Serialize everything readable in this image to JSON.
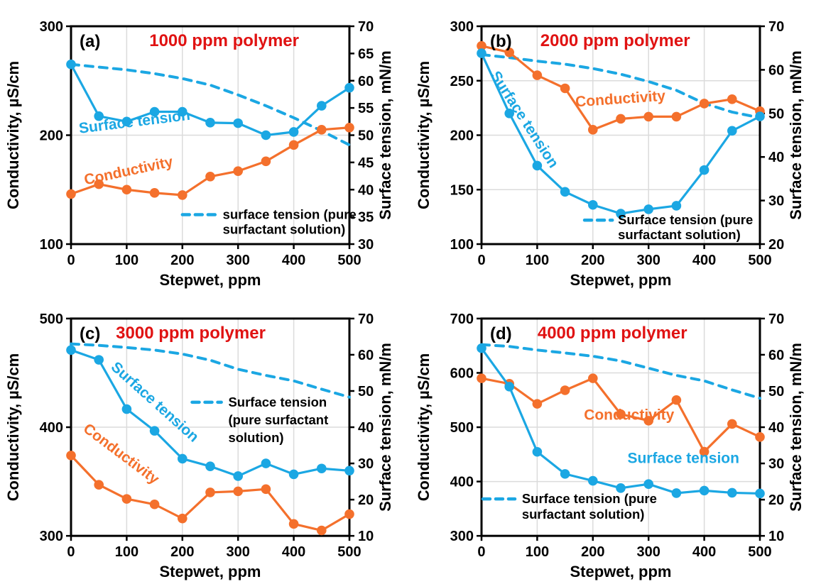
{
  "page": {
    "background": "#ffffff"
  },
  "colors": {
    "surface_tension": "#1BA7E3",
    "conductivity": "#F4702C",
    "grid": "#DBDBDB",
    "axis": "#000000",
    "text": "#000000",
    "title_red": "#E01212"
  },
  "chart_data": [
    {
      "id": "a",
      "type": "line",
      "panel_label": "(a)",
      "title": "1000 ppm polymer",
      "title_x_pct": 0.55,
      "xlabel": "Stepwet, ppm",
      "x": [
        0,
        50,
        100,
        150,
        200,
        250,
        300,
        350,
        400,
        450,
        500
      ],
      "x_range": [
        0,
        500
      ],
      "x_ticks": [
        0,
        100,
        200,
        300,
        400,
        500
      ],
      "left_axis": {
        "label": "Conductivity, µS/cm",
        "range": [
          100,
          300
        ],
        "ticks": [
          100,
          200,
          300
        ]
      },
      "right_axis": {
        "label": "Surface tension, mN/m",
        "range": [
          30,
          70
        ],
        "ticks": [
          30,
          35,
          40,
          45,
          50,
          55,
          60,
          65,
          70
        ]
      },
      "grid": true,
      "series": [
        {
          "key": "surface-tension-pure",
          "name": "surface tension (pure surfactant solution)",
          "axis": "right",
          "color_key": "surface_tension",
          "style": "dashed",
          "markers": false,
          "values": [
            63,
            62.5,
            62,
            61.3,
            60.4,
            59.2,
            57.4,
            55.4,
            53.2,
            50.8,
            48.2
          ]
        },
        {
          "key": "conductivity",
          "name": "Conductivity",
          "axis": "left",
          "color_key": "conductivity",
          "style": "solid",
          "markers": true,
          "values": [
            146,
            155,
            150,
            147,
            145,
            162,
            167,
            176,
            191,
            205,
            207
          ]
        },
        {
          "key": "surface-tension",
          "name": "Surface tension",
          "axis": "right",
          "color_key": "surface_tension",
          "style": "solid",
          "markers": true,
          "values": [
            63,
            53.5,
            52.5,
            54.3,
            54.3,
            52.3,
            52.2,
            50,
            50.6,
            55.4,
            58.7
          ]
        }
      ],
      "inline_labels": [
        {
          "key": "surface-tension",
          "text": "Surface tension",
          "color_key": "surface_tension",
          "x_pct": 0.23,
          "y_pct": 0.46,
          "rotate": -7,
          "size": 21
        },
        {
          "key": "conductivity",
          "text": "Conductivity",
          "color_key": "conductivity",
          "x_pct": 0.21,
          "y_pct": 0.685,
          "rotate": -12,
          "size": 21
        }
      ],
      "legend": {
        "lines": [
          "surface tension (pure",
          "surfactant solution)"
        ],
        "sample_x_pct": 0.4,
        "sample_w_pct": 0.125,
        "text_x_pct": 0.545,
        "y_pct": 0.865,
        "line_step_pct": 0.068
      }
    },
    {
      "id": "b",
      "type": "line",
      "panel_label": "(b)",
      "title": "2000 ppm polymer",
      "title_x_pct": 0.48,
      "xlabel": "Stepwet, ppm",
      "x": [
        0,
        50,
        100,
        150,
        200,
        250,
        300,
        350,
        400,
        450,
        500
      ],
      "x_range": [
        0,
        500
      ],
      "x_ticks": [
        0,
        100,
        200,
        300,
        400,
        500
      ],
      "left_axis": {
        "label": "Conductivity, µS/cm",
        "range": [
          100,
          300
        ],
        "ticks": [
          100,
          150,
          200,
          250,
          300
        ]
      },
      "right_axis": {
        "label": "Surface tension, mN/m",
        "range": [
          20,
          70
        ],
        "ticks": [
          20,
          30,
          40,
          50,
          60,
          70
        ]
      },
      "grid": true,
      "series": [
        {
          "key": "surface-tension-pure",
          "name": "Surface tension (pure surfactant solution)",
          "axis": "right",
          "color_key": "surface_tension",
          "style": "dashed",
          "markers": false,
          "values": [
            63.5,
            62.8,
            62,
            61.3,
            60.3,
            59,
            57.3,
            55.3,
            52.3,
            50.3,
            49
          ]
        },
        {
          "key": "conductivity",
          "name": "Conductivity",
          "axis": "left",
          "color_key": "conductivity",
          "style": "solid",
          "markers": true,
          "values": [
            282,
            276,
            255,
            243,
            205,
            215,
            217,
            217,
            229,
            233,
            222
          ]
        },
        {
          "key": "surface-tension",
          "name": "Surface tension",
          "axis": "right",
          "color_key": "surface_tension",
          "style": "solid",
          "markers": true,
          "values": [
            63.8,
            50,
            38,
            32,
            29,
            27,
            28,
            28.8,
            37,
            46,
            49.3
          ]
        }
      ],
      "inline_labels": [
        {
          "key": "surface-tension",
          "text": "Surface tension",
          "color_key": "surface_tension",
          "x_pct": 0.14,
          "y_pct": 0.44,
          "rotate": 57,
          "size": 21
        },
        {
          "key": "conductivity",
          "text": "Conductivity",
          "color_key": "conductivity",
          "x_pct": 0.5,
          "y_pct": 0.355,
          "rotate": -4,
          "size": 21
        }
      ],
      "legend": {
        "lines": [
          "Surface tension (pure",
          "surfactant solution)"
        ],
        "sample_x_pct": 0.37,
        "sample_w_pct": 0.1,
        "text_x_pct": 0.49,
        "y_pct": 0.89,
        "line_step_pct": 0.068
      }
    },
    {
      "id": "c",
      "type": "line",
      "panel_label": "(c)",
      "title": "3000 ppm polymer",
      "title_x_pct": 0.43,
      "xlabel": "Stepwet, ppm",
      "x": [
        0,
        50,
        100,
        150,
        200,
        250,
        300,
        350,
        400,
        450,
        500
      ],
      "x_range": [
        0,
        500
      ],
      "x_ticks": [
        0,
        100,
        200,
        300,
        400,
        500
      ],
      "left_axis": {
        "label": "Conductivity, µS/cm",
        "range": [
          300,
          500
        ],
        "ticks": [
          300,
          400,
          500
        ]
      },
      "right_axis": {
        "label": "Surface tension, mN/m",
        "range": [
          10,
          70
        ],
        "ticks": [
          10,
          20,
          30,
          40,
          50,
          60,
          70
        ]
      },
      "grid": true,
      "series": [
        {
          "key": "surface-tension-pure",
          "name": "Surface tension (pure surfactant solution)",
          "axis": "right",
          "color_key": "surface_tension",
          "style": "dashed",
          "markers": false,
          "values": [
            63,
            62.6,
            62,
            61.3,
            60.2,
            58.5,
            56,
            54.3,
            52.8,
            50.5,
            48.3
          ]
        },
        {
          "key": "conductivity",
          "name": "Conductivity",
          "axis": "left",
          "color_key": "conductivity",
          "style": "solid",
          "markers": true,
          "values": [
            374,
            347,
            334,
            329,
            316,
            340,
            341,
            343,
            311,
            305,
            320
          ]
        },
        {
          "key": "surface-tension",
          "name": "Surface tension",
          "axis": "right",
          "color_key": "surface_tension",
          "style": "solid",
          "markers": true,
          "values": [
            61.3,
            58.6,
            45,
            39,
            31.3,
            29.2,
            26.5,
            30,
            27,
            28.6,
            28
          ]
        }
      ],
      "inline_labels": [
        {
          "key": "surface-tension",
          "text": "Surface tension",
          "color_key": "surface_tension",
          "x_pct": 0.29,
          "y_pct": 0.4,
          "rotate": 42,
          "size": 21
        },
        {
          "key": "conductivity",
          "text": "Conductivity",
          "color_key": "conductivity",
          "x_pct": 0.17,
          "y_pct": 0.64,
          "rotate": 37,
          "size": 21
        }
      ],
      "legend": {
        "lines": [
          "Surface tension",
          "(pure surfactant",
          "solution)"
        ],
        "sample_x_pct": 0.435,
        "sample_w_pct": 0.105,
        "text_x_pct": 0.565,
        "y_pct": 0.385,
        "line_step_pct": 0.082
      }
    },
    {
      "id": "d",
      "type": "line",
      "panel_label": "(d)",
      "title": "4000 ppm polymer",
      "title_x_pct": 0.47,
      "xlabel": "Stepwet, ppm",
      "x": [
        0,
        50,
        100,
        150,
        200,
        250,
        300,
        350,
        400,
        450,
        500
      ],
      "x_range": [
        0,
        500
      ],
      "x_ticks": [
        0,
        100,
        200,
        300,
        400,
        500
      ],
      "left_axis": {
        "label": "Conductivity, µS/cm",
        "range": [
          300,
          700
        ],
        "ticks": [
          300,
          400,
          500,
          600,
          700
        ]
      },
      "right_axis": {
        "label": "Surface tension, mN/m",
        "range": [
          10,
          70
        ],
        "ticks": [
          10,
          20,
          30,
          40,
          50,
          60,
          70
        ]
      },
      "grid": true,
      "series": [
        {
          "key": "surface-tension-pure",
          "name": "Surface tension (pure surfactant solution)",
          "axis": "right",
          "color_key": "surface_tension",
          "style": "dashed",
          "markers": false,
          "values": [
            62.8,
            62.3,
            61.3,
            60.5,
            59.6,
            58.3,
            56.3,
            54.3,
            52.8,
            50.3,
            48
          ]
        },
        {
          "key": "conductivity",
          "name": "Conductivity",
          "axis": "left",
          "color_key": "conductivity",
          "style": "solid",
          "markers": true,
          "values": [
            590,
            580,
            543,
            568,
            590,
            524,
            512,
            550,
            455,
            506,
            482
          ]
        },
        {
          "key": "surface-tension",
          "name": "Surface tension",
          "axis": "right",
          "color_key": "surface_tension",
          "style": "solid",
          "markers": true,
          "values": [
            61.8,
            51.2,
            33.2,
            27.1,
            25.2,
            23.2,
            24.3,
            21.8,
            22.5,
            21.9,
            21.7
          ]
        }
      ],
      "inline_labels": [
        {
          "key": "conductivity",
          "text": "Conductivity",
          "color_key": "conductivity",
          "x_pct": 0.53,
          "y_pct": 0.465,
          "rotate": 0,
          "size": 21
        },
        {
          "key": "surface-tension",
          "text": "Surface tension",
          "color_key": "surface_tension",
          "x_pct": 0.725,
          "y_pct": 0.665,
          "rotate": 0,
          "size": 21
        }
      ],
      "legend": {
        "lines": [
          "Surface tension (pure",
          "surfactant solution)"
        ],
        "sample_x_pct": 0.005,
        "sample_w_pct": 0.115,
        "text_x_pct": 0.145,
        "y_pct": 0.83,
        "line_step_pct": 0.072
      }
    }
  ]
}
